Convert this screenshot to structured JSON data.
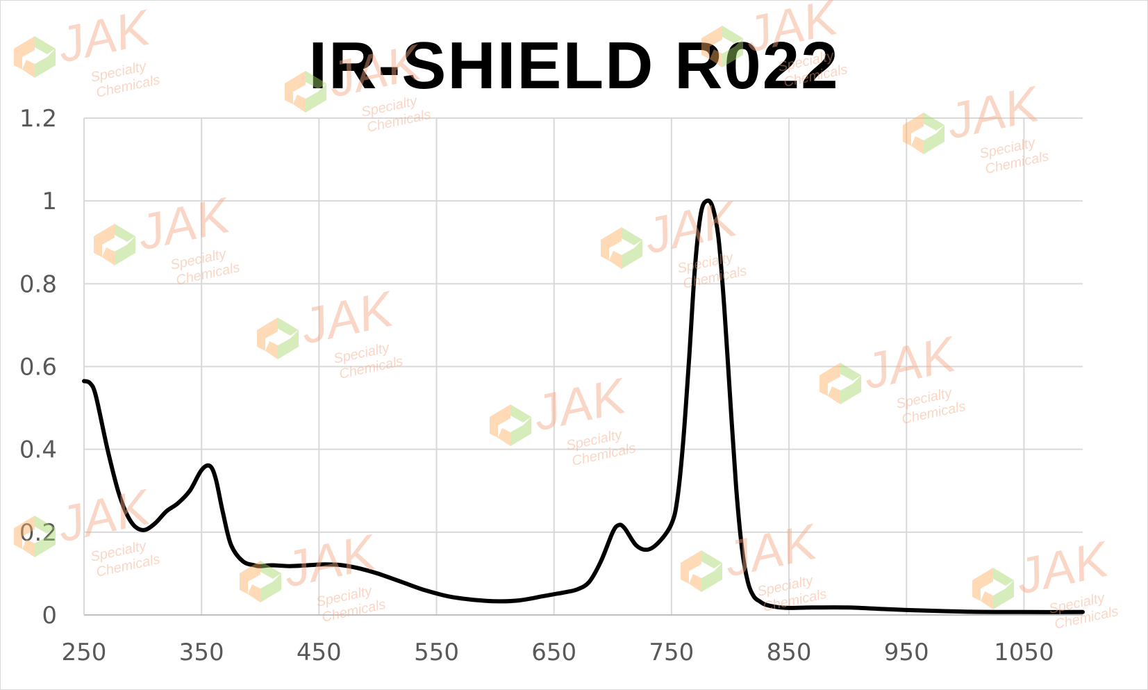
{
  "chart_data": {
    "type": "line",
    "title": "IR-SHIELD R022",
    "xlabel": "",
    "ylabel": "",
    "xlim": [
      250,
      1100
    ],
    "ylim": [
      0,
      1.2
    ],
    "x_ticks": [
      "250",
      "350",
      "450",
      "550",
      "650",
      "750",
      "850",
      "950",
      "1050"
    ],
    "y_ticks": [
      "0",
      "0.2",
      "0.4",
      "0.6",
      "0.8",
      "1",
      "1.2"
    ],
    "grid": true,
    "legend": "none",
    "line_color": "#000000",
    "series": [
      {
        "x": [
          250,
          255,
          260,
          270,
          280,
          290,
          300,
          310,
          320,
          330,
          340,
          350,
          357,
          362,
          368,
          375,
          385,
          395,
          400,
          410,
          425,
          440,
          455,
          470,
          485,
          500,
          520,
          540,
          560,
          580,
          600,
          620,
          640,
          650,
          660,
          670,
          680,
          690,
          700,
          705,
          710,
          720,
          730,
          740,
          750,
          755,
          760,
          765,
          770,
          775,
          780,
          785,
          790,
          795,
          800,
          805,
          810,
          815,
          820,
          825,
          830,
          840,
          850,
          870,
          900,
          925,
          950,
          1000,
          1050,
          1100
        ],
        "y": [
          0.565,
          0.56,
          0.53,
          0.4,
          0.29,
          0.225,
          0.205,
          0.22,
          0.25,
          0.27,
          0.3,
          0.35,
          0.36,
          0.33,
          0.25,
          0.17,
          0.13,
          0.12,
          0.118,
          0.12,
          0.118,
          0.12,
          0.122,
          0.12,
          0.112,
          0.1,
          0.08,
          0.06,
          0.045,
          0.037,
          0.033,
          0.035,
          0.045,
          0.05,
          0.055,
          0.062,
          0.08,
          0.13,
          0.2,
          0.217,
          0.21,
          0.168,
          0.158,
          0.178,
          0.22,
          0.28,
          0.42,
          0.62,
          0.84,
          0.97,
          1.0,
          0.985,
          0.91,
          0.74,
          0.52,
          0.31,
          0.16,
          0.08,
          0.045,
          0.033,
          0.025,
          0.019,
          0.017,
          0.018,
          0.018,
          0.015,
          0.012,
          0.008,
          0.007,
          0.007
        ]
      }
    ]
  },
  "watermark": {
    "brand": "JAK",
    "line1": "Specialty",
    "line2": "Chemicals",
    "colors": {
      "text": "#f4a582",
      "green": "#a6d96a",
      "orange": "#fdae61"
    }
  }
}
